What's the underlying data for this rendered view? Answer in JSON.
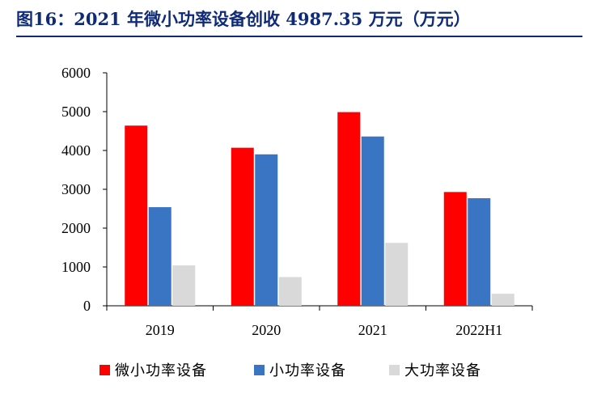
{
  "header": {
    "title": "图16：2021 年微小功率设备创收 4987.35 万元（万元）"
  },
  "chart_data": {
    "type": "bar",
    "categories": [
      "2019",
      "2020",
      "2021",
      "2022H1"
    ],
    "series": [
      {
        "name": "微小功率设备",
        "color": "#ff0000",
        "values": [
          4640,
          4070,
          4987.35,
          2930
        ]
      },
      {
        "name": "小功率设备",
        "color": "#3a75c4",
        "values": [
          2540,
          3900,
          4360,
          2770
        ]
      },
      {
        "name": "大功率设备",
        "color": "#d9d9d9",
        "values": [
          1040,
          740,
          1620,
          310
        ]
      }
    ],
    "yticks": [
      0,
      1000,
      2000,
      3000,
      4000,
      5000,
      6000
    ],
    "ylim": [
      0,
      6000
    ],
    "grid": false,
    "legend_position": "bottom"
  }
}
